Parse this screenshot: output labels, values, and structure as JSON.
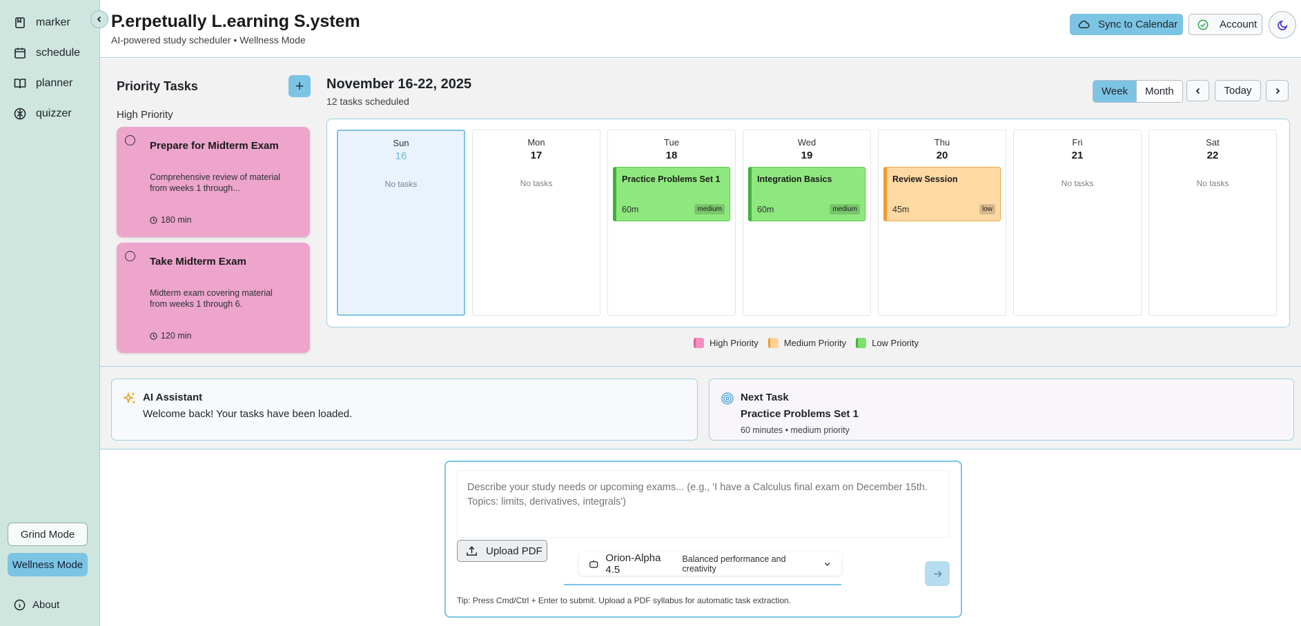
{
  "sidebar": {
    "items": [
      {
        "label": "marker",
        "icon": "bookmark-icon"
      },
      {
        "label": "schedule",
        "icon": "calendar-icon"
      },
      {
        "label": "planner",
        "icon": "book-icon"
      },
      {
        "label": "quizzer",
        "icon": "brain-icon"
      }
    ],
    "grind_label": "Grind Mode",
    "wellness_label": "Wellness Mode",
    "about_label": "About"
  },
  "header": {
    "title": "P.erpetually L.earning S.ystem",
    "subtitle": "AI-powered study scheduler • Wellness Mode",
    "sync_label": "Sync to Calendar",
    "account_label": "Account"
  },
  "priority": {
    "title": "Priority Tasks",
    "add_label": "+",
    "group_label": "High Priority",
    "tasks": [
      {
        "title": "Prepare for Midterm Exam",
        "desc": "Comprehensive review of material from weeks 1 through...",
        "duration": "180 min"
      },
      {
        "title": "Take Midterm Exam",
        "desc": "Midterm exam covering material from weeks 1 through 6.",
        "duration": "120 min"
      }
    ]
  },
  "calendar": {
    "title": "November 16-22, 2025",
    "count": "12 tasks scheduled",
    "week_label": "Week",
    "month_label": "Month",
    "today_label": "Today",
    "no_tasks": "No tasks",
    "days": [
      {
        "name": "Sun",
        "num": "16",
        "today": true
      },
      {
        "name": "Mon",
        "num": "17"
      },
      {
        "name": "Tue",
        "num": "18",
        "event": {
          "title": "Practice Problems Set 1",
          "duration": "60m",
          "priority": "medium",
          "color": "green"
        }
      },
      {
        "name": "Wed",
        "num": "19",
        "event": {
          "title": "Integration Basics",
          "duration": "60m",
          "priority": "medium",
          "color": "green"
        }
      },
      {
        "name": "Thu",
        "num": "20",
        "event": {
          "title": "Review Session",
          "duration": "45m",
          "priority": "low",
          "color": "orange"
        }
      },
      {
        "name": "Fri",
        "num": "21"
      },
      {
        "name": "Sat",
        "num": "22"
      }
    ],
    "legend": [
      {
        "label": "High Priority",
        "color": "#f58fc0"
      },
      {
        "label": "Medium Priority",
        "color": "#ffd29a"
      },
      {
        "label": "Low Priority",
        "color": "#7fe06e"
      }
    ]
  },
  "assistant": {
    "title": "AI Assistant",
    "message": "Welcome back! Your tasks have been loaded."
  },
  "next_task": {
    "title": "Next Task",
    "name": "Practice Problems Set 1",
    "meta": "60 minutes • medium priority"
  },
  "input": {
    "placeholder": "Describe your study needs or upcoming exams... (e.g., 'I have a Calculus final exam on December 15th. Topics: limits, derivatives, integrals')",
    "upload_label": "Upload PDF",
    "model_name": "Orion-Alpha 4.5",
    "model_desc": "Balanced performance and creativity",
    "tip": "Tip: Press Cmd/Ctrl + Enter to submit. Upload a PDF syllabus for automatic task extraction."
  },
  "colors": {
    "accent": "#7cc4e4",
    "sidebar_bg": "#cfe6df",
    "high_priority": "#eda5cc",
    "low_event": "#8fe87e",
    "medium_event": "#ffd9a3"
  }
}
